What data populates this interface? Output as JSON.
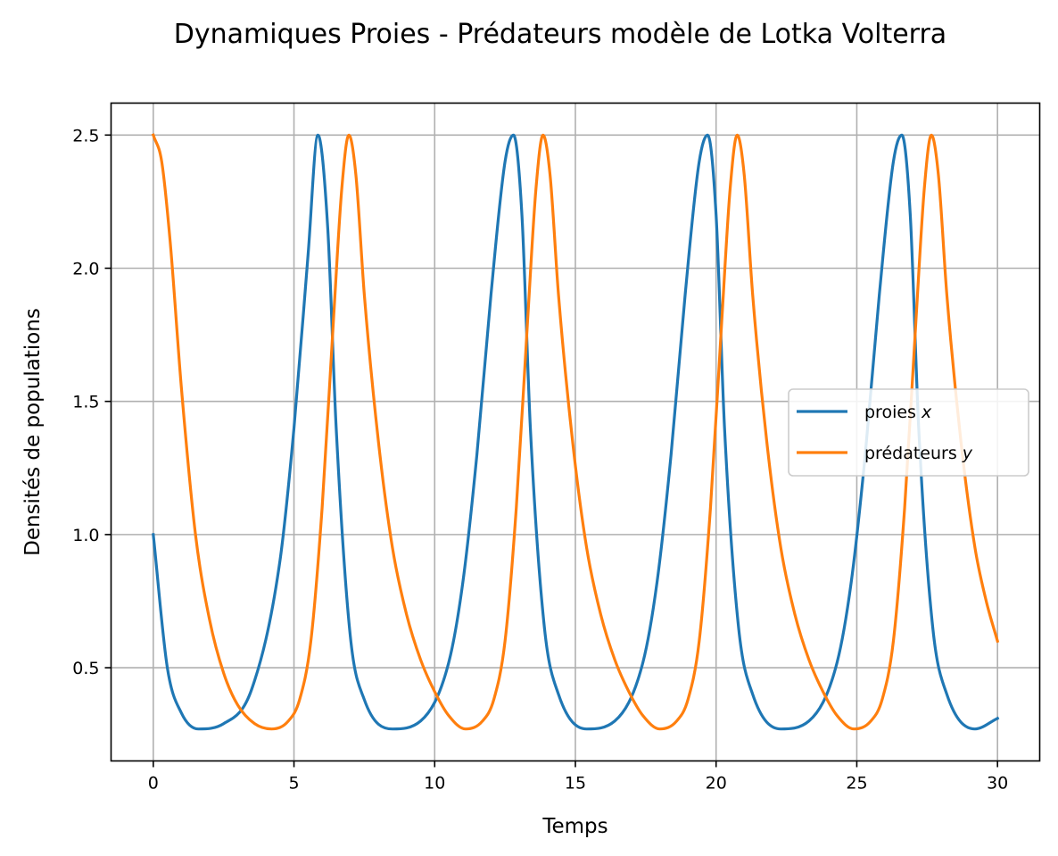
{
  "chart_data": {
    "type": "line",
    "title": "Dynamiques Proies - Prédateurs modèle de Lotka Volterra",
    "xlabel": "Temps",
    "ylabel": "Densités de populations",
    "xlim": [
      -1.5,
      31.5
    ],
    "ylim": [
      0.15,
      2.62
    ],
    "xticks": [
      0,
      5,
      10,
      15,
      20,
      25,
      30
    ],
    "xtick_labels": [
      "0",
      "5",
      "10",
      "15",
      "20",
      "25",
      "30"
    ],
    "yticks": [
      0.5,
      1.0,
      1.5,
      2.0,
      2.5
    ],
    "ytick_labels": [
      "0.5",
      "1.0",
      "1.5",
      "2.0",
      "2.5"
    ],
    "grid": true,
    "legend_position": "center-right",
    "series": [
      {
        "name": "proies x",
        "legend_text": "proies ",
        "legend_var": "x",
        "color": "#1f77b4",
        "x": [
          0,
          0.5,
          1.0,
          1.6,
          2.5,
          3.5,
          4.5,
          5.0,
          5.5,
          5.85,
          6.2,
          6.5,
          7.0,
          7.5,
          8.5,
          9.5,
          10.5,
          11.0,
          11.5,
          12.0,
          12.5,
          12.8,
          13.1,
          13.4,
          13.9,
          14.4,
          15.4,
          16.4,
          17.4,
          17.9,
          18.4,
          18.9,
          19.4,
          19.7,
          20.0,
          20.3,
          20.8,
          21.3,
          22.3,
          23.3,
          24.3,
          24.8,
          25.3,
          25.8,
          26.3,
          26.6,
          26.9,
          27.2,
          27.7,
          28.2,
          29.2,
          30.0
        ],
        "y": [
          1.0,
          0.5,
          0.33,
          0.27,
          0.29,
          0.42,
          0.9,
          1.4,
          2.05,
          2.5,
          2.15,
          1.4,
          0.62,
          0.38,
          0.27,
          0.3,
          0.52,
          0.82,
          1.3,
          1.9,
          2.4,
          2.5,
          2.2,
          1.4,
          0.65,
          0.4,
          0.27,
          0.3,
          0.52,
          0.82,
          1.3,
          1.9,
          2.4,
          2.5,
          2.2,
          1.4,
          0.65,
          0.4,
          0.27,
          0.3,
          0.52,
          0.82,
          1.3,
          1.9,
          2.4,
          2.5,
          2.2,
          1.4,
          0.65,
          0.4,
          0.27,
          0.31
        ]
      },
      {
        "name": "prédateurs y",
        "legend_text": "prédateurs ",
        "legend_var": "y",
        "color": "#ff7f0e",
        "x": [
          0,
          0.3,
          0.6,
          1.0,
          1.5,
          2.0,
          2.5,
          3.0,
          3.6,
          4.2,
          4.8,
          5.2,
          5.6,
          6.0,
          6.4,
          6.7,
          6.95,
          7.2,
          7.5,
          8.0,
          8.5,
          9.0,
          9.5,
          10.0,
          10.5,
          11.1,
          11.7,
          12.1,
          12.5,
          12.9,
          13.3,
          13.6,
          13.85,
          14.1,
          14.4,
          14.9,
          15.4,
          15.9,
          16.4,
          16.9,
          17.4,
          18.0,
          18.6,
          19.0,
          19.4,
          19.8,
          20.2,
          20.5,
          20.75,
          21.0,
          21.3,
          21.8,
          22.3,
          22.8,
          23.3,
          23.8,
          24.3,
          24.9,
          25.5,
          25.9,
          26.3,
          26.7,
          27.1,
          27.4,
          27.65,
          27.9,
          28.2,
          28.7,
          29.2,
          29.6,
          30.0
        ],
        "y": [
          2.5,
          2.4,
          2.1,
          1.55,
          1.0,
          0.68,
          0.48,
          0.36,
          0.29,
          0.27,
          0.3,
          0.38,
          0.6,
          1.1,
          1.8,
          2.3,
          2.5,
          2.35,
          1.9,
          1.35,
          0.95,
          0.7,
          0.53,
          0.41,
          0.32,
          0.27,
          0.3,
          0.38,
          0.6,
          1.1,
          1.8,
          2.3,
          2.5,
          2.35,
          1.9,
          1.35,
          0.95,
          0.7,
          0.53,
          0.41,
          0.32,
          0.27,
          0.3,
          0.38,
          0.6,
          1.1,
          1.8,
          2.3,
          2.5,
          2.35,
          1.9,
          1.35,
          0.95,
          0.7,
          0.53,
          0.41,
          0.32,
          0.27,
          0.3,
          0.38,
          0.6,
          1.1,
          1.8,
          2.3,
          2.5,
          2.35,
          1.9,
          1.35,
          0.95,
          0.75,
          0.6
        ]
      }
    ]
  }
}
